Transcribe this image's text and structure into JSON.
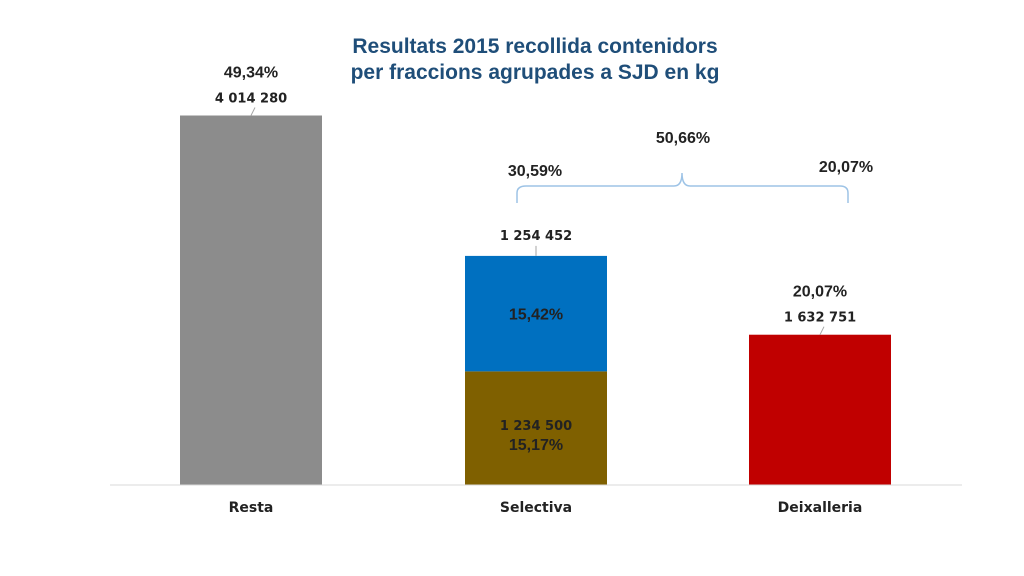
{
  "chart_data": {
    "type": "bar",
    "stacked": true,
    "title_lines": [
      "Resultats 2015 recollida contenidors",
      "per fraccions agrupades a SJD en kg"
    ],
    "categories": [
      "Resta",
      "Selectiva",
      "Deixalleria"
    ],
    "ylim": [
      0,
      4400000
    ],
    "grid": false,
    "bars": [
      {
        "category": "Resta",
        "segments": [
          {
            "value": 4014280,
            "value_label": "4 014 280",
            "pct_label": "49,34%",
            "color": "#8c8c8c"
          }
        ]
      },
      {
        "category": "Selectiva",
        "segments": [
          {
            "value": 1234500,
            "value_label": "1 234 500",
            "pct_label": "15,17%",
            "color": "#7f6000"
          },
          {
            "value": 1254452,
            "value_label": "1 254 452",
            "pct_label": "15,42%",
            "color": "#0070c0"
          }
        ]
      },
      {
        "category": "Deixalleria",
        "segments": [
          {
            "value": 1632751,
            "value_label": "1 632 751",
            "pct_label": "20,07%",
            "color": "#c00000"
          }
        ]
      }
    ],
    "annotations": {
      "group_total_pct": "50,66%",
      "selectiva_total_pct": "30,59%",
      "deixalleria_pct": "20,07%"
    }
  }
}
